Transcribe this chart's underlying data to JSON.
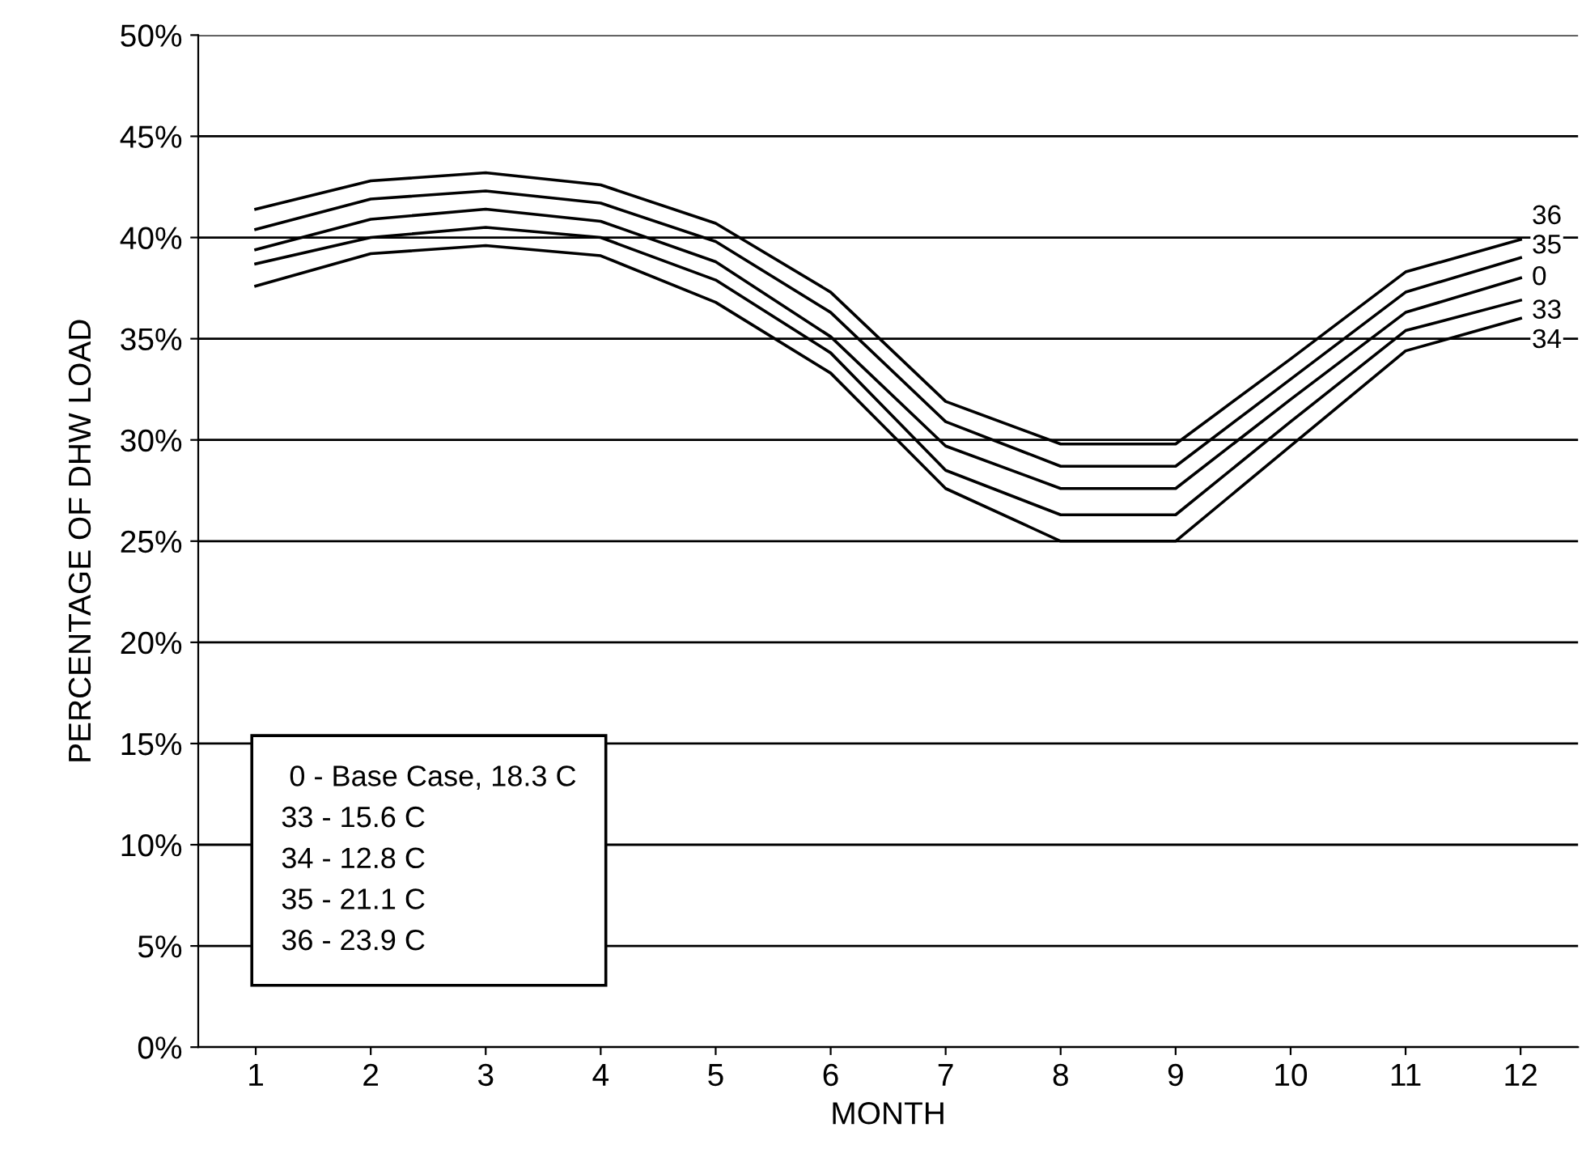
{
  "chart_data": {
    "type": "line",
    "xlabel": "MONTH",
    "ylabel": "PERCENTAGE OF DHW LOAD",
    "x": [
      1,
      2,
      3,
      4,
      5,
      6,
      7,
      8,
      9,
      10,
      11,
      12
    ],
    "series": [
      {
        "name": "36",
        "color": "#000000",
        "values": [
          41.4,
          42.8,
          43.2,
          42.6,
          40.7,
          37.3,
          31.9,
          29.8,
          29.8,
          34.0,
          38.3,
          39.9
        ]
      },
      {
        "name": "35",
        "color": "#000000",
        "values": [
          40.4,
          41.9,
          42.3,
          41.7,
          39.8,
          36.3,
          30.9,
          28.7,
          28.7,
          33.0,
          37.3,
          39.0
        ]
      },
      {
        "name": "0",
        "color": "#000000",
        "values": [
          39.4,
          40.9,
          41.4,
          40.8,
          38.8,
          35.1,
          29.7,
          27.6,
          27.6,
          32.0,
          36.3,
          38.0
        ]
      },
      {
        "name": "33",
        "color": "#000000",
        "values": [
          38.7,
          40.0,
          40.5,
          40.0,
          37.9,
          34.3,
          28.5,
          26.3,
          26.3,
          30.9,
          35.4,
          36.9
        ]
      },
      {
        "name": "34",
        "color": "#000000",
        "values": [
          37.6,
          39.2,
          39.6,
          39.1,
          36.8,
          33.3,
          27.6,
          25.0,
          25.0,
          29.7,
          34.4,
          36.0
        ]
      }
    ],
    "xlim": [
      0.5,
      12.5
    ],
    "xticks": [
      1,
      2,
      3,
      4,
      5,
      6,
      7,
      8,
      9,
      10,
      11,
      12
    ],
    "ylim": [
      0,
      50
    ],
    "yticks": [
      {
        "value": 0,
        "label": "0%"
      },
      {
        "value": 5,
        "label": "5%"
      },
      {
        "value": 10,
        "label": "10%"
      },
      {
        "value": 15,
        "label": "15%"
      },
      {
        "value": 20,
        "label": "20%"
      },
      {
        "value": 25,
        "label": "25%"
      },
      {
        "value": 30,
        "label": "30%"
      },
      {
        "value": 35,
        "label": "35%"
      },
      {
        "value": 40,
        "label": "40%"
      },
      {
        "value": 45,
        "label": "45%"
      },
      {
        "value": 50,
        "label": "50%"
      }
    ],
    "grid": "y",
    "marker": "none",
    "line_style": "solid",
    "legend": false,
    "annotations": [
      " 0 - Base Case, 18.3 C",
      "33 - 15.6 C",
      "34 - 12.8 C",
      "35 - 21.1 C",
      "36 - 23.9 C"
    ]
  }
}
